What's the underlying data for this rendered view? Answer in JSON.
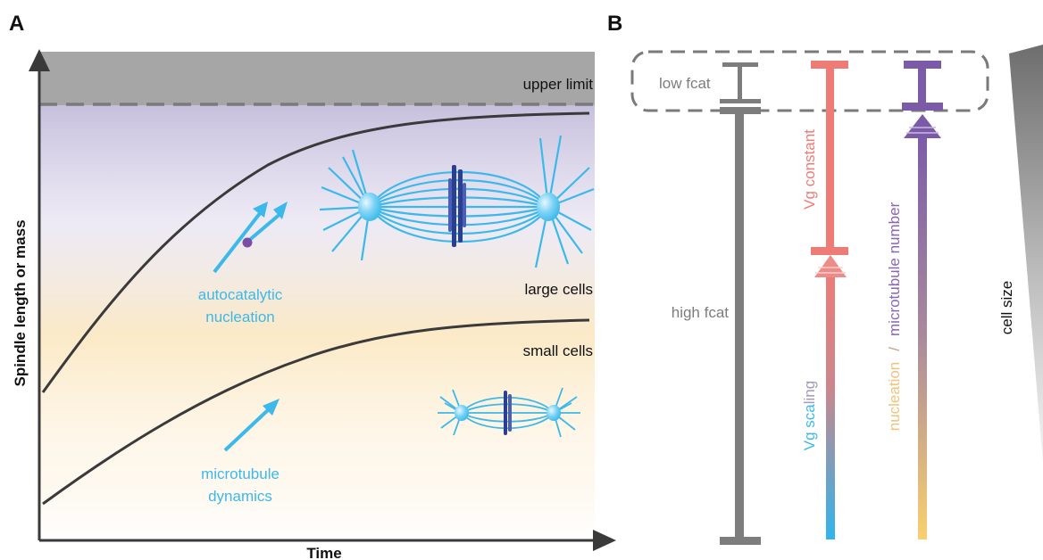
{
  "panel_a": {
    "letter": "A",
    "x_axis_label": "Time",
    "y_axis_label": "Spindle length or mass",
    "labels": {
      "upper_limit": "upper limit",
      "large_cells": "large cells",
      "small_cells": "small cells",
      "autocatalytic_line1": "autocatalytic",
      "autocatalytic_line2": "nucleation",
      "microtubule_line1": "microtubule",
      "microtubule_line2": "dynamics"
    }
  },
  "panel_b": {
    "letter": "B",
    "labels": {
      "low_fcat": "low fcat",
      "high_fcat": "high fcat",
      "vg_constant": "Vg constant",
      "vg_scaling_a": "Vg sca",
      "vg_scaling_b": "ling",
      "nucleation_a": "nucleation",
      "nucleation_sep": "/",
      "nucleation_b": "microtubule number",
      "cell_size": "cell size"
    }
  },
  "colors": {
    "blue": "#3cb9ea",
    "salmon": "#ef7b76",
    "purple": "#7b5ba8",
    "gray": "#7d7d7d",
    "yellow": "#f9d06f",
    "dark": "#3a3a3a"
  }
}
